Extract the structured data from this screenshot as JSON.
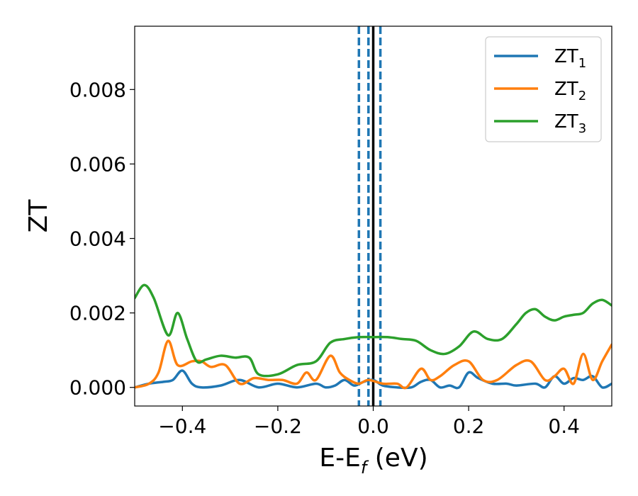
{
  "chart_data": {
    "type": "line",
    "ylabel": "ZT",
    "xlabel_main": "E-E",
    "xlabel_sub": "f",
    "xlabel_unit": " (eV)",
    "xlim": [
      -0.5,
      0.5
    ],
    "ylim": [
      -0.0005,
      0.0097
    ],
    "xticks": [
      -0.4,
      -0.2,
      0.0,
      0.2,
      0.4
    ],
    "xtick_labels": [
      "−0.4",
      "−0.2",
      "0.0",
      "0.2",
      "0.4"
    ],
    "yticks": [
      0.0,
      0.002,
      0.004,
      0.006,
      0.008
    ],
    "ytick_labels": [
      "0.000",
      "0.002",
      "0.004",
      "0.006",
      "0.008"
    ],
    "legend_position": "top-right",
    "reference_lines": [
      {
        "x": -0.03,
        "style": "dashed",
        "color": "#1f77b4"
      },
      {
        "x": -0.01,
        "style": "dashed",
        "color": "#1f77b4"
      },
      {
        "x": 0.015,
        "style": "dashed",
        "color": "#1f77b4"
      },
      {
        "x": 0.0,
        "style": "solid",
        "color": "#000000"
      }
    ],
    "series": [
      {
        "name": "ZT",
        "sub": "1",
        "color": "#1f77b4",
        "x": [
          -0.5,
          -0.47,
          -0.44,
          -0.42,
          -0.4,
          -0.38,
          -0.36,
          -0.32,
          -0.28,
          -0.24,
          -0.2,
          -0.16,
          -0.12,
          -0.1,
          -0.08,
          -0.06,
          -0.04,
          -0.02,
          0.0,
          0.02,
          0.05,
          0.08,
          0.1,
          0.12,
          0.14,
          0.16,
          0.18,
          0.2,
          0.22,
          0.25,
          0.28,
          0.3,
          0.34,
          0.36,
          0.38,
          0.4,
          0.42,
          0.44,
          0.46,
          0.48,
          0.5
        ],
        "y": [
          0.0,
          0.0001,
          0.00015,
          0.0002,
          0.00045,
          0.0001,
          0.0,
          5e-05,
          0.0002,
          0.0,
          0.0001,
          0.0,
          0.0001,
          0.0,
          5e-05,
          0.0002,
          5e-05,
          0.00015,
          0.0002,
          5e-05,
          0.0,
          0.0,
          0.00015,
          0.0002,
          0.0,
          5e-05,
          0.0,
          0.0004,
          0.00025,
          0.0001,
          0.0001,
          5e-05,
          0.0001,
          0.0,
          0.0003,
          0.0001,
          0.00025,
          0.0002,
          0.0003,
          0.0,
          0.0001
        ]
      },
      {
        "name": "ZT",
        "sub": "2",
        "color": "#ff7f0e",
        "x": [
          -0.5,
          -0.47,
          -0.45,
          -0.43,
          -0.41,
          -0.38,
          -0.36,
          -0.34,
          -0.31,
          -0.28,
          -0.25,
          -0.22,
          -0.19,
          -0.16,
          -0.14,
          -0.12,
          -0.09,
          -0.07,
          -0.05,
          -0.03,
          -0.01,
          0.02,
          0.05,
          0.07,
          0.1,
          0.12,
          0.14,
          0.17,
          0.2,
          0.23,
          0.26,
          0.3,
          0.33,
          0.36,
          0.38,
          0.4,
          0.42,
          0.44,
          0.46,
          0.48,
          0.5
        ],
        "y": [
          0.0,
          0.0001,
          0.0004,
          0.00125,
          0.0006,
          0.0007,
          0.0007,
          0.00055,
          0.0006,
          0.0001,
          0.00025,
          0.0002,
          0.0002,
          0.0001,
          0.0004,
          0.0002,
          0.00085,
          0.0004,
          0.0002,
          0.0001,
          0.0002,
          0.0001,
          0.0001,
          0.0,
          0.0005,
          0.0002,
          0.0003,
          0.0006,
          0.0007,
          0.0002,
          0.0002,
          0.0006,
          0.0007,
          0.0002,
          0.0003,
          0.0005,
          0.0001,
          0.0009,
          0.0002,
          0.0007,
          0.00115
        ]
      },
      {
        "name": "ZT",
        "sub": "3",
        "color": "#2ca02c",
        "x": [
          -0.5,
          -0.48,
          -0.46,
          -0.43,
          -0.41,
          -0.39,
          -0.37,
          -0.35,
          -0.32,
          -0.29,
          -0.26,
          -0.24,
          -0.2,
          -0.16,
          -0.12,
          -0.09,
          -0.06,
          -0.03,
          0.0,
          0.03,
          0.06,
          0.09,
          0.12,
          0.15,
          0.18,
          0.21,
          0.24,
          0.27,
          0.3,
          0.32,
          0.34,
          0.36,
          0.38,
          0.4,
          0.42,
          0.44,
          0.46,
          0.48,
          0.5
        ],
        "y": [
          0.0024,
          0.00275,
          0.0024,
          0.0014,
          0.002,
          0.0013,
          0.0007,
          0.00075,
          0.00085,
          0.0008,
          0.0008,
          0.00035,
          0.00035,
          0.0006,
          0.0007,
          0.0012,
          0.0013,
          0.00135,
          0.00135,
          0.00135,
          0.0013,
          0.00125,
          0.001,
          0.0009,
          0.0011,
          0.0015,
          0.0013,
          0.0013,
          0.0017,
          0.002,
          0.0021,
          0.0019,
          0.0018,
          0.0019,
          0.00195,
          0.002,
          0.00225,
          0.00235,
          0.0022
        ]
      }
    ]
  }
}
